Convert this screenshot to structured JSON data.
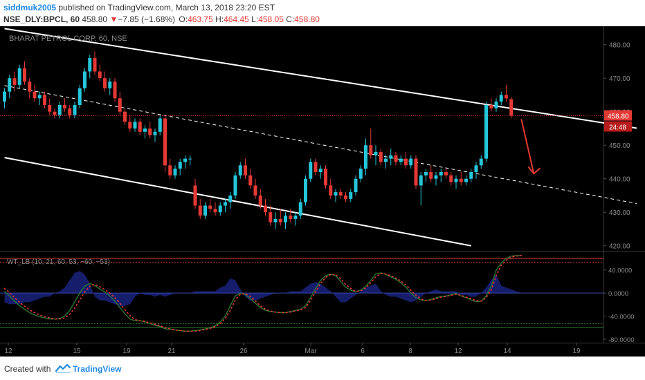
{
  "header": {
    "author": "siddmuk2005",
    "published_text": " published on TradingView.com, March 13, 2018 23:20 EST",
    "symbol": "NSE_DLY:BPCL, 60",
    "last": "458.80",
    "change": "−7.85 (−1.68%)",
    "o_label": "O:",
    "o_val": "463.75",
    "h_label": "H:",
    "h_val": "464.45",
    "l_label": "L:",
    "l_val": "458.05",
    "c_label": "C:",
    "c_val": "458.80"
  },
  "footer": {
    "created_with": "Created with",
    "brand": "TradingView"
  },
  "colors": {
    "up": "#26c6da",
    "down": "#e53935",
    "bg": "#000000",
    "channel": "#ffffff",
    "osc_green": "#2e7d32",
    "osc_red": "#e53935",
    "osc_fill": "#1a237e",
    "axis_text": "#8a8a8a"
  },
  "chart_data": [
    {
      "type": "candlestick",
      "title": "BHARAT PETROL CORP, 60, NSE",
      "x_ticks": [
        "12",
        "15",
        "19",
        "21",
        "26",
        "Mar",
        "6",
        "8",
        "12",
        "14",
        "19"
      ],
      "y_ticks": [
        420,
        430,
        440,
        450,
        460,
        470,
        480
      ],
      "ylim": [
        418.5,
        485.5
      ],
      "last_price_label": "458.80",
      "countdown_label": "24:48",
      "last_price": 458.8,
      "channel_upper": {
        "from": [
          0,
          484.8
        ],
        "to": [
          126,
          455.1
        ]
      },
      "channel_mid": {
        "from": [
          0,
          467.8
        ],
        "to": [
          126,
          432.6
        ]
      },
      "channel_lower": {
        "from": [
          0,
          446.3
        ],
        "to": [
          93,
          420.0
        ]
      },
      "candles": [
        [
          463,
          467,
          461,
          466
        ],
        [
          466,
          471,
          464,
          470
        ],
        [
          470,
          472,
          466,
          468
        ],
        [
          468,
          474,
          467,
          473
        ],
        [
          473,
          475,
          468,
          469
        ],
        [
          469,
          470,
          464,
          466
        ],
        [
          466,
          468,
          463,
          464
        ],
        [
          464,
          466,
          462,
          465
        ],
        [
          465,
          466,
          461,
          462
        ],
        [
          462,
          464,
          459,
          460
        ],
        [
          460,
          461,
          458,
          459
        ],
        [
          459,
          463,
          458,
          462
        ],
        [
          462,
          464,
          460,
          461
        ],
        [
          461,
          462,
          458,
          459
        ],
        [
          459,
          463,
          458,
          462
        ],
        [
          462,
          468,
          461,
          467
        ],
        [
          467,
          473,
          466,
          472
        ],
        [
          472,
          477,
          470,
          476
        ],
        [
          476,
          478,
          471,
          472
        ],
        [
          472,
          474,
          469,
          470
        ],
        [
          470,
          472,
          466,
          467
        ],
        [
          467,
          470,
          465,
          469
        ],
        [
          469,
          470,
          463,
          464
        ],
        [
          464,
          466,
          459,
          460
        ],
        [
          460,
          461,
          456,
          457
        ],
        [
          457,
          459,
          454,
          455
        ],
        [
          455,
          458,
          454,
          457
        ],
        [
          457,
          458,
          453,
          454
        ],
        [
          454,
          456,
          452,
          455
        ],
        [
          455,
          457,
          452,
          453
        ],
        [
          453,
          455,
          451,
          454
        ],
        [
          454,
          459,
          453,
          458
        ],
        [
          458,
          459,
          442,
          444
        ],
        [
          444,
          446,
          440,
          441
        ],
        [
          441,
          444,
          440,
          443
        ],
        [
          443,
          446,
          441,
          445
        ],
        [
          445,
          447,
          443,
          446
        ],
        [
          446,
          447,
          444,
          446
        ],
        [
          438,
          440,
          431,
          432
        ],
        [
          432,
          434,
          428,
          429
        ],
        [
          429,
          433,
          428,
          432
        ],
        [
          432,
          434,
          430,
          431
        ],
        [
          431,
          433,
          429,
          430
        ],
        [
          430,
          433,
          429,
          432
        ],
        [
          432,
          434,
          430,
          433
        ],
        [
          433,
          436,
          431,
          435
        ],
        [
          435,
          442,
          434,
          441
        ],
        [
          441,
          445,
          440,
          444
        ],
        [
          444,
          446,
          440,
          441
        ],
        [
          441,
          443,
          437,
          438
        ],
        [
          438,
          440,
          434,
          435
        ],
        [
          435,
          437,
          431,
          432
        ],
        [
          432,
          434,
          429,
          430
        ],
        [
          430,
          432,
          426,
          427
        ],
        [
          427,
          430,
          425,
          428
        ],
        [
          428,
          431,
          426,
          427
        ],
        [
          427,
          430,
          425,
          429
        ],
        [
          429,
          431,
          427,
          428
        ],
        [
          428,
          430,
          426,
          429
        ],
        [
          429,
          434,
          428,
          433
        ],
        [
          433,
          441,
          432,
          440
        ],
        [
          440,
          446,
          439,
          445
        ],
        [
          445,
          446,
          441,
          442
        ],
        [
          442,
          444,
          440,
          443
        ],
        [
          443,
          444,
          437,
          438
        ],
        [
          438,
          440,
          434,
          435
        ],
        [
          435,
          437,
          433,
          436
        ],
        [
          436,
          437,
          434,
          435
        ],
        [
          435,
          436,
          433,
          434
        ],
        [
          434,
          437,
          433,
          436
        ],
        [
          436,
          441,
          435,
          440
        ],
        [
          440,
          444,
          439,
          443
        ],
        [
          443,
          452,
          441,
          450
        ],
        [
          450,
          455,
          446,
          447
        ],
        [
          447,
          450,
          444,
          448
        ],
        [
          448,
          449,
          444,
          445
        ],
        [
          445,
          447,
          443,
          446
        ],
        [
          446,
          449,
          444,
          447
        ],
        [
          447,
          448,
          444,
          445
        ],
        [
          445,
          447,
          444,
          446
        ],
        [
          446,
          448,
          443,
          444
        ],
        [
          444,
          447,
          443,
          446
        ],
        [
          446,
          447,
          437,
          438
        ],
        [
          438,
          442,
          432,
          441
        ],
        [
          441,
          443,
          439,
          442
        ],
        [
          442,
          444,
          439,
          440
        ],
        [
          440,
          442,
          438,
          441
        ],
        [
          441,
          443,
          439,
          442
        ],
        [
          442,
          443,
          440,
          441
        ],
        [
          441,
          442,
          438,
          439
        ],
        [
          439,
          441,
          437,
          440
        ],
        [
          440,
          442,
          438,
          439
        ],
        [
          439,
          441,
          438,
          440
        ],
        [
          440,
          443,
          439,
          442
        ],
        [
          442,
          445,
          440,
          444
        ],
        [
          444,
          447,
          443,
          446
        ],
        [
          446,
          463,
          445,
          462
        ],
        [
          462,
          464,
          460,
          461
        ],
        [
          461,
          464,
          460,
          463
        ],
        [
          463,
          466,
          462,
          465
        ],
        [
          465,
          468,
          463,
          464
        ],
        [
          463.75,
          464.45,
          458.05,
          458.8
        ]
      ],
      "annotation": {
        "type": "arrow",
        "from": [
          103,
          457.8
        ],
        "to": [
          105.5,
          441.5
        ]
      }
    },
    {
      "type": "oscillator",
      "title": "WT_LB (10, 21, 60, 53, −60, −53)",
      "y_ticks": [
        "40.0000",
        "0.0000",
        "-40.0000",
        "-80.0000"
      ],
      "ylim": [
        -86,
        72
      ],
      "levels": [
        60,
        53,
        -53,
        -60
      ],
      "wt1": [
        3,
        -5,
        -14,
        -22,
        -28,
        -34,
        -38,
        -41,
        -43,
        -45,
        -45,
        -44,
        -40,
        -30,
        -15,
        0,
        12,
        17,
        13,
        7,
        2,
        -5,
        -14,
        -25,
        -36,
        -45,
        -48,
        -48,
        -50,
        -53,
        -56,
        -58,
        -62,
        -63,
        -64,
        -65,
        -66,
        -66,
        -65,
        -64,
        -62,
        -60,
        -57,
        -50,
        -40,
        -22,
        -5,
        0,
        -3,
        -10,
        -18,
        -25,
        -30,
        -32,
        -33,
        -34,
        -34,
        -32,
        -30,
        -28,
        -22,
        -8,
        8,
        22,
        30,
        33,
        30,
        20,
        10,
        5,
        2,
        5,
        12,
        22,
        33,
        35,
        32,
        28,
        24,
        18,
        10,
        0,
        -8,
        -12,
        -13,
        -11,
        -8,
        -6,
        -5,
        -3,
        -1,
        -5,
        -8,
        -12,
        -15,
        -14,
        -5,
        12,
        40,
        52,
        60,
        64,
        65,
        65
      ],
      "wt2": [
        8,
        1,
        -8,
        -16,
        -23,
        -29,
        -34,
        -38,
        -41,
        -43,
        -45,
        -45,
        -43,
        -37,
        -26,
        -12,
        2,
        12,
        15,
        11,
        6,
        0,
        -8,
        -18,
        -29,
        -39,
        -46,
        -48,
        -49,
        -52,
        -54,
        -57,
        -60,
        -62,
        -64,
        -65,
        -66,
        -66,
        -66,
        -65,
        -63,
        -61,
        -58,
        -53,
        -44,
        -30,
        -12,
        -2,
        -1,
        -6,
        -14,
        -22,
        -28,
        -31,
        -33,
        -34,
        -34,
        -33,
        -31,
        -29,
        -25,
        -13,
        2,
        17,
        27,
        32,
        32,
        25,
        15,
        8,
        3,
        4,
        9,
        18,
        28,
        34,
        33,
        30,
        26,
        21,
        14,
        5,
        -4,
        -10,
        -13,
        -12,
        -10,
        -7,
        -6,
        -4,
        -2,
        -4,
        -7,
        -10,
        -13,
        -14,
        -8,
        5,
        30,
        48,
        57,
        62,
        64,
        65
      ]
    }
  ]
}
